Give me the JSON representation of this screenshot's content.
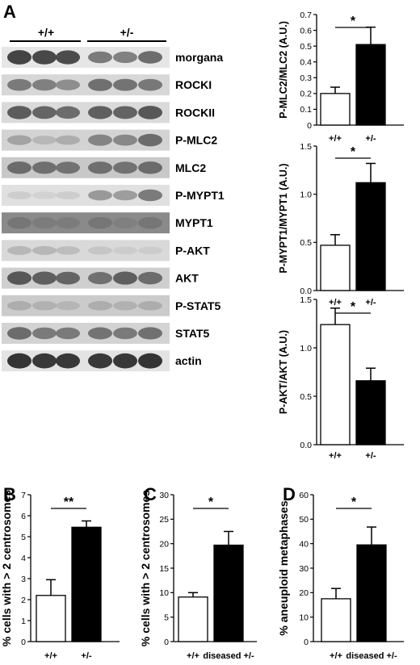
{
  "panel_letters": [
    "A",
    "B",
    "C",
    "D"
  ],
  "blot": {
    "genotype_labels": [
      "+/+",
      "+/-"
    ],
    "rows": [
      {
        "label": "morgana",
        "intensity": [
          0.82,
          0.8,
          0.78,
          0.55,
          0.52,
          0.62
        ],
        "background": "#e6e6e6"
      },
      {
        "label": "ROCKI",
        "intensity": [
          0.55,
          0.52,
          0.45,
          0.6,
          0.58,
          0.56
        ],
        "background": "#d7d7d7"
      },
      {
        "label": "ROCKII",
        "intensity": [
          0.7,
          0.65,
          0.62,
          0.68,
          0.66,
          0.72
        ],
        "background": "#dadada"
      },
      {
        "label": "P-MLC2",
        "intensity": [
          0.35,
          0.25,
          0.3,
          0.5,
          0.48,
          0.62
        ],
        "background": "#d3d3d3"
      },
      {
        "label": "MLC2",
        "intensity": [
          0.62,
          0.6,
          0.58,
          0.6,
          0.58,
          0.62
        ],
        "background": "#c8c8c8"
      },
      {
        "label": "P-MYPT1",
        "intensity": [
          0.15,
          0.12,
          0.15,
          0.4,
          0.38,
          0.55
        ],
        "background": "#e0e0e0"
      },
      {
        "label": "MYPT1",
        "intensity": [
          0.55,
          0.52,
          0.52,
          0.55,
          0.5,
          0.55
        ],
        "background": "#8a8a8a"
      },
      {
        "label": "P-AKT",
        "intensity": [
          0.25,
          0.25,
          0.22,
          0.18,
          0.15,
          0.15
        ],
        "background": "#d9d9d9"
      },
      {
        "label": "AKT",
        "intensity": [
          0.72,
          0.68,
          0.65,
          0.6,
          0.68,
          0.62
        ],
        "background": "#cfcfcf"
      },
      {
        "label": "P-STAT5",
        "intensity": [
          0.3,
          0.28,
          0.26,
          0.3,
          0.28,
          0.3
        ],
        "background": "#cbcbcb"
      },
      {
        "label": "STAT5",
        "intensity": [
          0.62,
          0.55,
          0.55,
          0.58,
          0.55,
          0.6
        ],
        "background": "#d3d3d3"
      },
      {
        "label": "actin",
        "intensity": [
          0.9,
          0.88,
          0.88,
          0.88,
          0.88,
          0.9
        ],
        "background": "#e3e3e3"
      }
    ]
  },
  "chart_data": [
    {
      "type": "bar",
      "panel": "A",
      "ylabel": "P-MLC2/MLC2 (A.U.)",
      "categories": [
        "+/+",
        "+/-"
      ],
      "values": [
        0.2,
        0.51
      ],
      "errors": [
        0.04,
        0.11
      ],
      "ylim": [
        0,
        0.7
      ],
      "yticks": [
        "0",
        "0.1",
        "0.2",
        "0.3",
        "0.4",
        "0.5",
        "0.6",
        "0.7"
      ],
      "significance": "*",
      "fill_colors": [
        "#ffffff",
        "#000000"
      ]
    },
    {
      "type": "bar",
      "panel": "A",
      "ylabel": "P-MYPT1/MYPT1 (A.U.)",
      "categories": [
        "+/+",
        "+/-"
      ],
      "values": [
        0.47,
        1.12
      ],
      "errors": [
        0.11,
        0.2
      ],
      "ylim": [
        0,
        1.5
      ],
      "yticks": [
        "0.0",
        "0.5",
        "1.0",
        "1.5"
      ],
      "significance": "*",
      "fill_colors": [
        "#ffffff",
        "#000000"
      ]
    },
    {
      "type": "bar",
      "panel": "A",
      "ylabel": "P-AKT/AKT (A.U.)",
      "categories": [
        "+/+",
        "+/-"
      ],
      "values": [
        1.24,
        0.66
      ],
      "errors": [
        0.17,
        0.13
      ],
      "ylim": [
        0,
        1.5
      ],
      "yticks": [
        "0.0",
        "0.5",
        "1.0",
        "1.5"
      ],
      "significance": "*",
      "fill_colors": [
        "#ffffff",
        "#000000"
      ]
    },
    {
      "type": "bar",
      "panel": "B",
      "ylabel": "% cells with > 2 centrosomes",
      "categories": [
        "+/+",
        "+/-"
      ],
      "values": [
        2.2,
        5.45
      ],
      "errors": [
        0.75,
        0.3
      ],
      "ylim": [
        0,
        7
      ],
      "yticks": [
        "0",
        "1",
        "2",
        "3",
        "4",
        "5",
        "6",
        "7"
      ],
      "significance": "**",
      "fill_colors": [
        "#ffffff",
        "#000000"
      ]
    },
    {
      "type": "bar",
      "panel": "C",
      "ylabel": "% cells with > 2 centrosomes",
      "categories": [
        "+/+",
        "diseased +/-"
      ],
      "values": [
        9.1,
        19.7
      ],
      "errors": [
        0.9,
        2.8
      ],
      "ylim": [
        0,
        30
      ],
      "yticks": [
        "0",
        "5",
        "10",
        "15",
        "20",
        "25",
        "30"
      ],
      "significance": "*",
      "fill_colors": [
        "#ffffff",
        "#000000"
      ]
    },
    {
      "type": "bar",
      "panel": "D",
      "ylabel": "% aneuploid metaphases",
      "categories": [
        "+/+",
        "diseased +/-"
      ],
      "values": [
        17.5,
        39.5
      ],
      "errors": [
        4.2,
        7.3
      ],
      "ylim": [
        0,
        60
      ],
      "yticks": [
        "0",
        "10",
        "20",
        "30",
        "40",
        "50",
        "60"
      ],
      "significance": "*",
      "fill_colors": [
        "#ffffff",
        "#000000"
      ]
    }
  ]
}
